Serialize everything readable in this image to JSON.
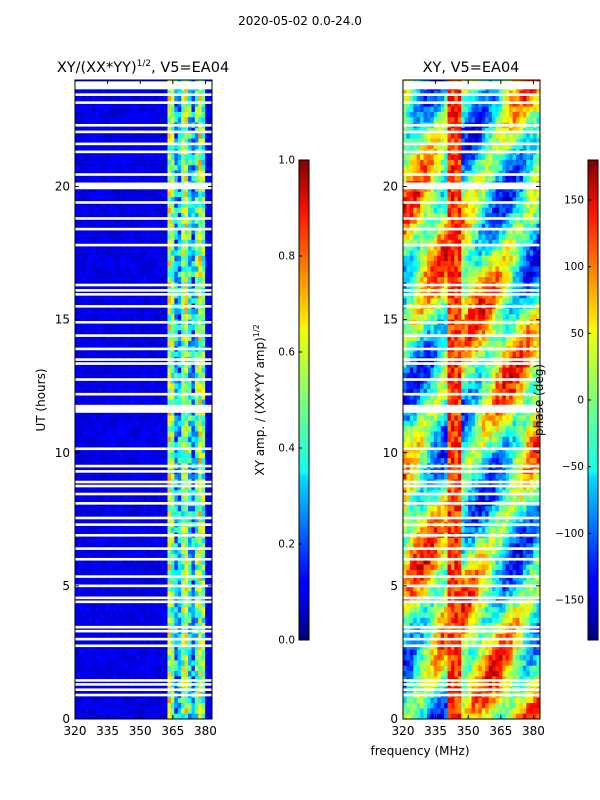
{
  "suptitle": "2020-05-02 0.0-24.0",
  "chart_data": [
    {
      "type": "heatmap",
      "title": "XY/(XX*YY)",
      "title_sup": "1/2",
      "title_suffix": ", V5=EA04",
      "xlabel": "",
      "ylabel": "UT (hours)",
      "xlim": [
        320,
        383
      ],
      "ylim": [
        0,
        24
      ],
      "xticks": [
        320,
        335,
        350,
        365,
        380
      ],
      "yticks": [
        0,
        5,
        10,
        15,
        20
      ],
      "colorbar": {
        "label": "XY amp. / (XX*YY amp)",
        "label_sup": "1/2",
        "range": [
          0.0,
          1.0
        ],
        "ticks": [
          "0.0",
          "0.2",
          "0.4",
          "0.6",
          "0.8",
          "1.0"
        ],
        "colormap": "jet"
      },
      "bright_band_MHz": [
        362,
        380
      ],
      "description_values": "amplitude near 0.1 below 362 MHz, 0.3-0.6 between 362 and 380 MHz"
    },
    {
      "type": "heatmap",
      "title": "XY, V5=EA04",
      "xlabel": "frequency (MHz)",
      "ylabel": "",
      "xlim": [
        320,
        383
      ],
      "ylim": [
        0,
        24
      ],
      "xticks": [
        320,
        335,
        350,
        365,
        380
      ],
      "yticks": [
        0,
        5,
        10,
        15,
        20
      ],
      "colorbar": {
        "label": "phase (deg)",
        "range": [
          -180,
          180
        ],
        "ticks": [
          "−150",
          "−100",
          "−50",
          "0",
          "50",
          "100",
          "150"
        ],
        "tick_values": [
          -150,
          -100,
          -50,
          0,
          50,
          100,
          150
        ],
        "colormap": "jet"
      }
    }
  ],
  "flag_gaps_hours": [
    0.9,
    1.1,
    1.3,
    1.45,
    2.75,
    3.0,
    3.3,
    3.45,
    4.4,
    4.55,
    5.0,
    5.35,
    6.0,
    6.4,
    6.9,
    7.3,
    7.55,
    8.1,
    8.45,
    8.75,
    8.9,
    9.3,
    9.5,
    10.15,
    11.55,
    11.7,
    12.2,
    12.75,
    13.35,
    13.5,
    13.9,
    14.4,
    14.9,
    15.5,
    15.95,
    16.1,
    16.3,
    17.8,
    18.4,
    18.8,
    19.4,
    19.95,
    20.1,
    20.45,
    21.3,
    21.6,
    22.05,
    22.3,
    23.15,
    23.45,
    23.75,
    23.9
  ]
}
